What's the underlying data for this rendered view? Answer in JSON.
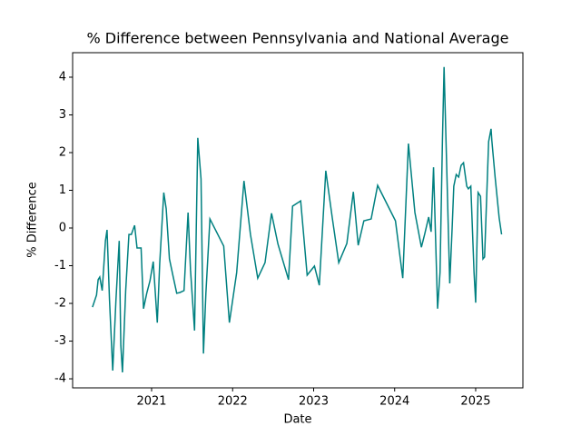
{
  "chart_data": {
    "type": "line",
    "title": "% Difference between Pennsylvania and National Average",
    "xlabel": "Date",
    "ylabel": "% Difference",
    "x": [
      2020.27,
      2020.32,
      2020.34,
      2020.36,
      2020.39,
      2020.43,
      2020.45,
      2020.48,
      2020.52,
      2020.56,
      2020.6,
      2020.62,
      2020.64,
      2020.68,
      2020.72,
      2020.75,
      2020.79,
      2020.82,
      2020.87,
      2020.9,
      2020.94,
      2020.98,
      2021.02,
      2021.07,
      2021.1,
      2021.15,
      2021.18,
      2021.22,
      2021.26,
      2021.31,
      2021.35,
      2021.4,
      2021.45,
      2021.48,
      2021.53,
      2021.57,
      2021.61,
      2021.64,
      2021.67,
      2021.72,
      2021.89,
      2021.96,
      2022.05,
      2022.14,
      2022.22,
      2022.31,
      2022.4,
      2022.48,
      2022.56,
      2022.69,
      2022.74,
      2022.84,
      2022.92,
      2023.01,
      2023.07,
      2023.15,
      2023.23,
      2023.31,
      2023.41,
      2023.49,
      2023.55,
      2023.62,
      2023.71,
      2023.79,
      2024.01,
      2024.1,
      2024.17,
      2024.25,
      2024.33,
      2024.37,
      2024.42,
      2024.45,
      2024.48,
      2024.53,
      2024.56,
      2024.59,
      2024.61,
      2024.64,
      2024.68,
      2024.71,
      2024.73,
      2024.76,
      2024.79,
      2024.82,
      2024.85,
      2024.89,
      2024.91,
      2024.94,
      2024.98,
      2025.0,
      2025.03,
      2025.06,
      2025.09,
      2025.11,
      2025.16,
      2025.19,
      2025.2,
      2025.24,
      2025.29,
      2025.32
    ],
    "series": [
      {
        "name": "% Difference",
        "color": "#008080",
        "values": [
          -2.1,
          -1.78,
          -1.37,
          -1.3,
          -1.66,
          -0.34,
          -0.05,
          -1.9,
          -3.78,
          -1.9,
          -0.34,
          -3.11,
          -3.83,
          -1.66,
          -0.17,
          -0.17,
          0.07,
          -0.53,
          -0.53,
          -2.14,
          -1.73,
          -1.4,
          -0.89,
          -2.51,
          -0.94,
          0.94,
          0.51,
          -0.82,
          -1.23,
          -1.73,
          -1.71,
          -1.66,
          0.41,
          -1.11,
          -2.72,
          2.39,
          1.3,
          -3.33,
          -1.73,
          0.24,
          -0.48,
          -2.51,
          -1.18,
          1.25,
          -0.17,
          -1.33,
          -0.92,
          0.39,
          -0.43,
          -1.37,
          0.58,
          0.72,
          -1.25,
          -1.01,
          -1.52,
          1.52,
          0.27,
          -0.92,
          -0.41,
          0.96,
          -0.46,
          0.19,
          0.24,
          1.13,
          0.19,
          -1.33,
          2.24,
          0.41,
          -0.51,
          -0.17,
          0.29,
          -0.1,
          1.61,
          -2.14,
          -1.18,
          2.34,
          4.27,
          1.83,
          -1.47,
          0.02,
          1.11,
          1.42,
          1.35,
          1.66,
          1.73,
          1.11,
          1.04,
          1.11,
          -1.18,
          -1.98,
          0.94,
          0.84,
          -0.82,
          -0.77,
          2.29,
          2.63,
          2.31,
          1.35,
          0.27,
          -0.17
        ]
      }
    ],
    "xlim": [
      2020.025,
      2025.583
    ],
    "xticks": [
      2021,
      2022,
      2023,
      2024,
      2025
    ],
    "ylim": [
      -4.24,
      4.65
    ],
    "yticks": [
      -4,
      -3,
      -2,
      -1,
      0,
      1,
      2,
      3,
      4
    ]
  }
}
